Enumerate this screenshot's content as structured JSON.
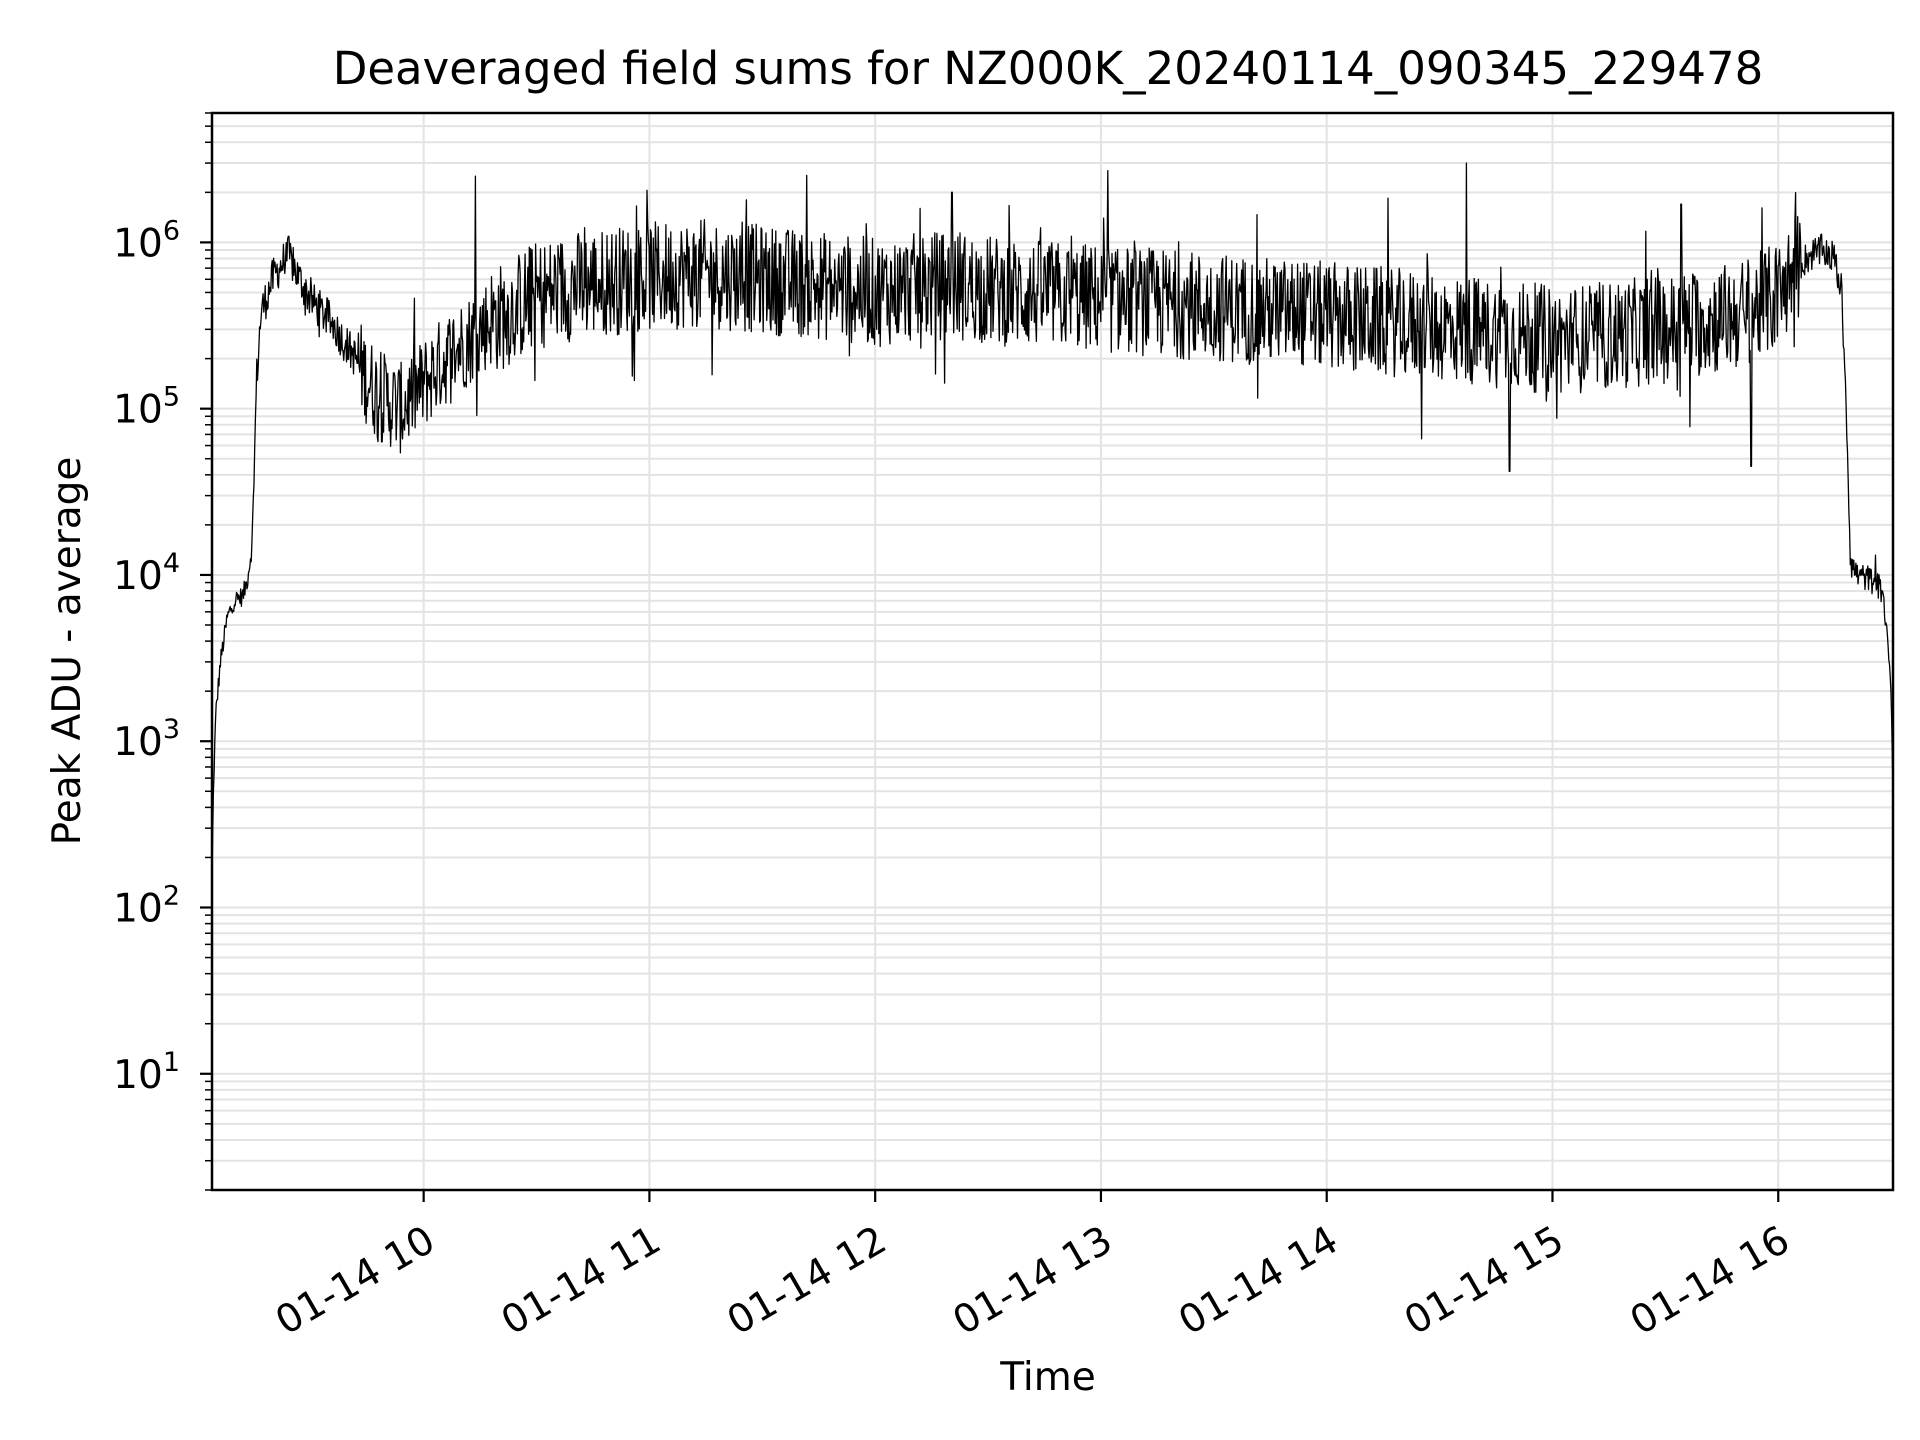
{
  "chart_data": {
    "type": "line",
    "title": "Deaveraged field sums for NZ000K_20240114_090345_229478",
    "xlabel": "Time",
    "ylabel": "Peak ADU - average",
    "x_unit": "hour of 2024-01-14",
    "xlim": [
      9.0625,
      16.5083
    ],
    "yscale": "log",
    "ylim": [
      2,
      6000000
    ],
    "x_ticks": [
      {
        "value": 10,
        "label": "01-14 10"
      },
      {
        "value": 11,
        "label": "01-14 11"
      },
      {
        "value": 12,
        "label": "01-14 12"
      },
      {
        "value": 13,
        "label": "01-14 13"
      },
      {
        "value": 14,
        "label": "01-14 14"
      },
      {
        "value": 15,
        "label": "01-14 15"
      },
      {
        "value": 16,
        "label": "01-14 16"
      }
    ],
    "y_ticks": [
      {
        "value": 10,
        "base": "10",
        "exp": "1"
      },
      {
        "value": 100,
        "base": "10",
        "exp": "2"
      },
      {
        "value": 1000,
        "base": "10",
        "exp": "3"
      },
      {
        "value": 10000,
        "base": "10",
        "exp": "4"
      },
      {
        "value": 100000,
        "base": "10",
        "exp": "5"
      },
      {
        "value": 1000000,
        "base": "10",
        "exp": "6"
      }
    ],
    "grid": true,
    "line_color": "#000000",
    "series": [
      {
        "x": [
          9.0625,
          9.07,
          9.08,
          9.1,
          9.13,
          9.16,
          9.2,
          9.22,
          9.24,
          9.26,
          9.28,
          9.3,
          9.33,
          9.36,
          9.4,
          9.45,
          9.5,
          9.55,
          9.6,
          9.65,
          9.7,
          9.75,
          9.8,
          9.85,
          9.9,
          9.95,
          10.0,
          10.05,
          10.1,
          10.15,
          10.2,
          10.25,
          10.3,
          10.35,
          10.4,
          10.5,
          10.6,
          10.7,
          10.8,
          10.9,
          11.0,
          11.1,
          11.2,
          11.3,
          11.4,
          11.5,
          11.6,
          11.7,
          11.8,
          11.9,
          12.0,
          12.1,
          12.2,
          12.3,
          12.4,
          12.5,
          12.6,
          12.7,
          12.8,
          12.9,
          13.0,
          13.1,
          13.2,
          13.3,
          13.4,
          13.5,
          13.6,
          13.7,
          13.8,
          13.9,
          14.0,
          14.1,
          14.2,
          14.3,
          14.4,
          14.5,
          14.6,
          14.7,
          14.8,
          14.9,
          15.0,
          15.1,
          15.2,
          15.3,
          15.4,
          15.5,
          15.6,
          15.7,
          15.8,
          15.9,
          16.0,
          16.05,
          16.1,
          16.15,
          16.2,
          16.25,
          16.28,
          16.3,
          16.32,
          16.35,
          16.4,
          16.43,
          16.46,
          16.48,
          16.5,
          16.5083
        ],
        "y": [
          150,
          600,
          1500,
          3000,
          5500,
          7000,
          7500,
          9500,
          15000,
          150000,
          380000,
          450000,
          600000,
          700000,
          850000,
          600000,
          450000,
          380000,
          320000,
          250000,
          200000,
          150000,
          120000,
          110000,
          100000,
          120000,
          140000,
          170000,
          200000,
          230000,
          260000,
          300000,
          340000,
          360000,
          400000,
          480000,
          520000,
          560000,
          580000,
          600000,
          620000,
          640000,
          650000,
          640000,
          620000,
          600000,
          580000,
          560000,
          540000,
          520000,
          500000,
          520000,
          540000,
          550000,
          540000,
          520000,
          500000,
          490000,
          480000,
          470000,
          460000,
          450000,
          440000,
          430000,
          420000,
          410000,
          400000,
          390000,
          380000,
          370000,
          360000,
          350000,
          340000,
          330000,
          320000,
          310000,
          300000,
          290000,
          280000,
          270000,
          260000,
          260000,
          270000,
          280000,
          290000,
          300000,
          320000,
          340000,
          360000,
          400000,
          480000,
          600000,
          750000,
          850000,
          900000,
          800000,
          500000,
          120000,
          12000,
          10000,
          9500,
          9000,
          8000,
          5000,
          2000,
          500
        ],
        "spikes": [
          {
            "x": 10.23,
            "y": 2500000
          },
          {
            "x": 11.43,
            "y": 1800000
          },
          {
            "x": 12.2,
            "y": 1600000
          },
          {
            "x": 12.34,
            "y": 2000000
          },
          {
            "x": 13.03,
            "y": 2700000
          },
          {
            "x": 14.62,
            "y": 3000000
          },
          {
            "x": 15.57,
            "y": 1700000
          },
          {
            "x": 14.81,
            "y": 42000
          },
          {
            "x": 15.88,
            "y": 45000
          }
        ]
      }
    ]
  }
}
